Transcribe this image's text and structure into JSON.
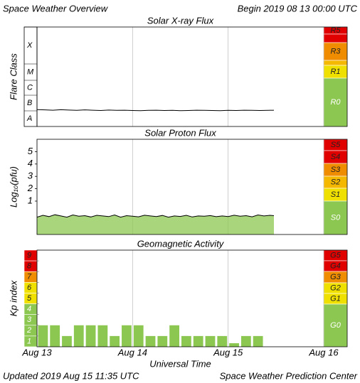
{
  "header": {
    "title": "Space Weather Overview",
    "begin": "Begin 2019 08 13 00:00 UTC"
  },
  "footer": {
    "updated": "Updated 2019 Aug 15 11:35 UTC",
    "source": "Space Weather Prediction Center"
  },
  "chart_data": [
    {
      "type": "line",
      "title": "Solar X-ray Flux",
      "ylabel": "Flare Class",
      "classes": [
        "A",
        "B",
        "C",
        "M",
        "X"
      ],
      "scale": [
        "R0",
        "R1",
        "R3",
        "R5"
      ],
      "x": [
        0,
        2,
        4,
        6,
        8,
        10,
        12,
        14,
        16,
        18,
        20,
        22,
        24,
        26,
        28,
        30,
        32,
        34,
        36,
        38,
        40,
        42,
        44,
        46,
        48,
        50,
        52,
        54,
        56,
        58,
        59.5
      ],
      "values": [
        -7.02,
        -7.04,
        -7.06,
        -7.03,
        -7.05,
        -7.07,
        -7.04,
        -7.06,
        -7.08,
        -7.05,
        -7.07,
        -7.06,
        -7.08,
        -7.09,
        -7.07,
        -7.06,
        -7.08,
        -7.07,
        -7.09,
        -7.08,
        -7.06,
        -7.07,
        -7.08,
        -7.09,
        -7.07,
        -7.08,
        -7.06,
        -7.07,
        -7.08,
        -7.07,
        -7.06
      ],
      "color": "#000000",
      "xlim": [
        0,
        72
      ],
      "xticks": [
        {
          "value": 0,
          "label": "Aug 13"
        },
        {
          "value": 24,
          "label": "Aug 14"
        },
        {
          "value": 48,
          "label": "Aug 15"
        },
        {
          "value": 72,
          "label": "Aug 16"
        }
      ],
      "ylim": [
        -8.1,
        -1.75
      ],
      "grid": true
    },
    {
      "type": "area",
      "title": "Solar Proton Flux",
      "ylabel": "Log₁₀(pfu)",
      "scale": [
        "S0",
        "S1",
        "S2",
        "S3",
        "S4",
        "S5"
      ],
      "x": [
        0,
        1.5,
        3,
        4.5,
        6,
        7.5,
        9,
        10.5,
        12,
        13.5,
        15,
        16.5,
        18,
        19.5,
        21,
        22.5,
        24,
        25.5,
        27,
        28.5,
        30,
        31.5,
        33,
        34.5,
        36,
        37.5,
        39,
        40.5,
        42,
        43.5,
        45,
        46.5,
        48,
        49.5,
        51,
        52.5,
        54,
        55.5,
        57,
        58.5,
        59.5
      ],
      "values": [
        -0.3,
        -0.15,
        -0.25,
        -0.1,
        -0.2,
        -0.3,
        -0.12,
        -0.22,
        -0.18,
        -0.28,
        -0.15,
        -0.2,
        -0.25,
        -0.12,
        -0.3,
        -0.18,
        -0.22,
        -0.27,
        -0.14,
        -0.2,
        -0.25,
        -0.16,
        -0.3,
        -0.2,
        -0.24,
        -0.15,
        -0.28,
        -0.2,
        -0.22,
        -0.17,
        -0.26,
        -0.2,
        -0.25,
        -0.14,
        -0.22,
        -0.18,
        -0.27,
        -0.12,
        -0.2,
        -0.15,
        -0.18
      ],
      "color": "#8cc751",
      "line_color": "#000000",
      "xlim": [
        0,
        72
      ],
      "xticks": [
        {
          "value": 0,
          "label": "Aug 13"
        },
        {
          "value": 24,
          "label": "Aug 14"
        },
        {
          "value": 48,
          "label": "Aug 15"
        },
        {
          "value": 72,
          "label": "Aug 16"
        }
      ],
      "ylim": [
        -1.7,
        6
      ],
      "yticks": [
        1,
        2,
        3,
        4,
        5
      ],
      "grid": true
    },
    {
      "type": "bar",
      "title": "Geomagnetic Activity",
      "ylabel": "Kp index",
      "xlabel": "Universal Time",
      "scale": [
        "G0",
        "G1",
        "G2",
        "G3",
        "G4",
        "G5"
      ],
      "x": [
        0,
        3,
        6,
        9,
        12,
        15,
        18,
        21,
        24,
        27,
        30,
        33,
        36,
        39,
        42,
        45,
        48,
        51,
        54
      ],
      "values": [
        2,
        2,
        1,
        2,
        2,
        2,
        1,
        2,
        2,
        1,
        1,
        2,
        1,
        1,
        1,
        1,
        0.33,
        1,
        1
      ],
      "color": "#8cc751",
      "xlim": [
        0,
        72
      ],
      "xticks": [
        {
          "value": 0,
          "label": "Aug 13"
        },
        {
          "value": 24,
          "label": "Aug 14"
        },
        {
          "value": 48,
          "label": "Aug 15"
        },
        {
          "value": 72,
          "label": "Aug 16"
        }
      ],
      "ylim": [
        0,
        9
      ],
      "yticks": [
        1,
        2,
        3,
        4,
        5,
        6,
        7,
        8,
        9
      ],
      "grid": true
    }
  ]
}
